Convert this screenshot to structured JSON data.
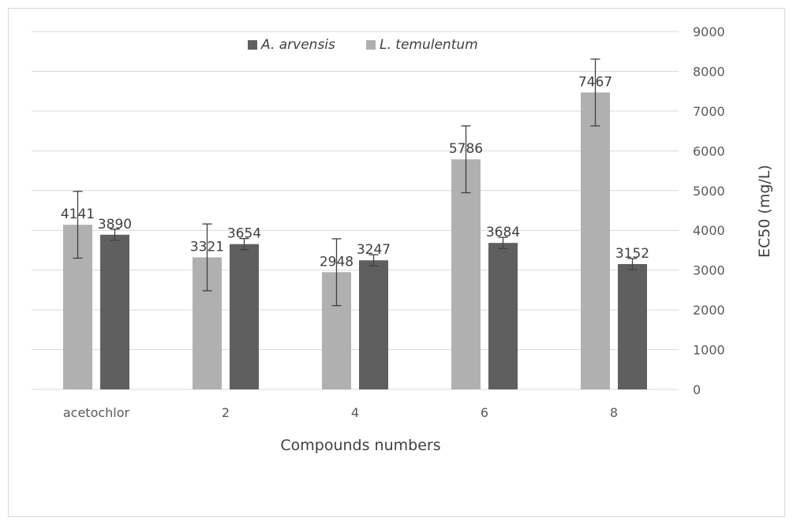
{
  "chart_data": {
    "type": "bar",
    "categories": [
      "acetochlor",
      "2",
      "4",
      "6",
      "8"
    ],
    "series": [
      {
        "name": "L. temulentum",
        "color": "#b0b0b0",
        "values": [
          4141,
          3321,
          2948,
          5786,
          7467
        ],
        "errors": [
          840,
          840,
          840,
          840,
          840
        ]
      },
      {
        "name": "A. arvensis",
        "color": "#5f5f5f",
        "values": [
          3890,
          3654,
          3247,
          3684,
          3152
        ],
        "errors": [
          140,
          140,
          140,
          140,
          140
        ]
      }
    ],
    "legend_order": [
      "A. arvensis",
      "L. temulentum"
    ],
    "xlabel": "Compounds numbers",
    "ylabel": "EC50 (mg/L)",
    "ylim": [
      0,
      9000
    ],
    "yticks": [
      0,
      1000,
      2000,
      3000,
      4000,
      5000,
      6000,
      7000,
      8000,
      9000
    ],
    "y_axis_side": "right",
    "grid": true,
    "legend_position": "top"
  }
}
